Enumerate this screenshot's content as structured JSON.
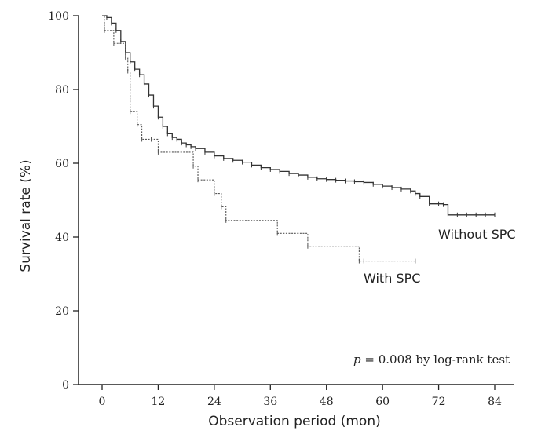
{
  "chart_data": {
    "type": "line",
    "subtype": "kaplan-meier step curves",
    "xlabel": "Observation period (mon)",
    "ylabel": "Survival rate (%)",
    "xlim": [
      0,
      84
    ],
    "ylim": [
      0,
      100
    ],
    "xticks": [
      0,
      12,
      24,
      36,
      48,
      60,
      72,
      84
    ],
    "yticks": [
      0,
      20,
      40,
      60,
      80,
      100
    ],
    "grid": false,
    "annotation": {
      "p_symbol": "p",
      "text": "= 0.008 by log-rank test"
    },
    "series": [
      {
        "name": "Without SPC",
        "line_style": "solid",
        "color": "#333333",
        "x": [
          0,
          1,
          2,
          3,
          4,
          5,
          6,
          7,
          8,
          9,
          10,
          11,
          12,
          13,
          14,
          15,
          16,
          17,
          18,
          19,
          20,
          22,
          24,
          26,
          28,
          30,
          32,
          34,
          36,
          38,
          40,
          42,
          44,
          46,
          48,
          50,
          52,
          54,
          56,
          58,
          60,
          62,
          64,
          66,
          67,
          68,
          70,
          72,
          73,
          74,
          76,
          78,
          80,
          82,
          84
        ],
        "y": [
          100,
          99.5,
          98,
          96,
          93,
          90,
          87.5,
          85.5,
          84,
          81.5,
          78.5,
          75.5,
          72.5,
          70,
          68,
          67,
          66.5,
          65.5,
          65,
          64.5,
          64,
          63,
          62,
          61.3,
          60.8,
          60.3,
          59.5,
          58.8,
          58.3,
          57.8,
          57.2,
          56.8,
          56.2,
          55.8,
          55.6,
          55.4,
          55.2,
          55.0,
          54.8,
          54.3,
          53.8,
          53.4,
          53.0,
          52.5,
          51.8,
          51.0,
          49.0,
          49.0,
          48.8,
          46.0,
          46.0,
          46.0,
          46.0,
          46.0,
          46.0
        ]
      },
      {
        "name": "With SPC",
        "line_style": "dotted",
        "color": "#555555",
        "x": [
          0,
          0.5,
          2.5,
          5,
          5.5,
          6,
          7.5,
          8.5,
          10.5,
          12,
          19.5,
          20.5,
          24,
          25.5,
          26.5,
          37.5,
          44,
          55,
          56,
          67
        ],
        "y": [
          100,
          96,
          92.5,
          88.5,
          85,
          74,
          70.5,
          66.5,
          66.5,
          63,
          59.2,
          55.5,
          51.8,
          48.2,
          44.5,
          41,
          37.5,
          33.5,
          33.5,
          33.5
        ]
      }
    ]
  }
}
